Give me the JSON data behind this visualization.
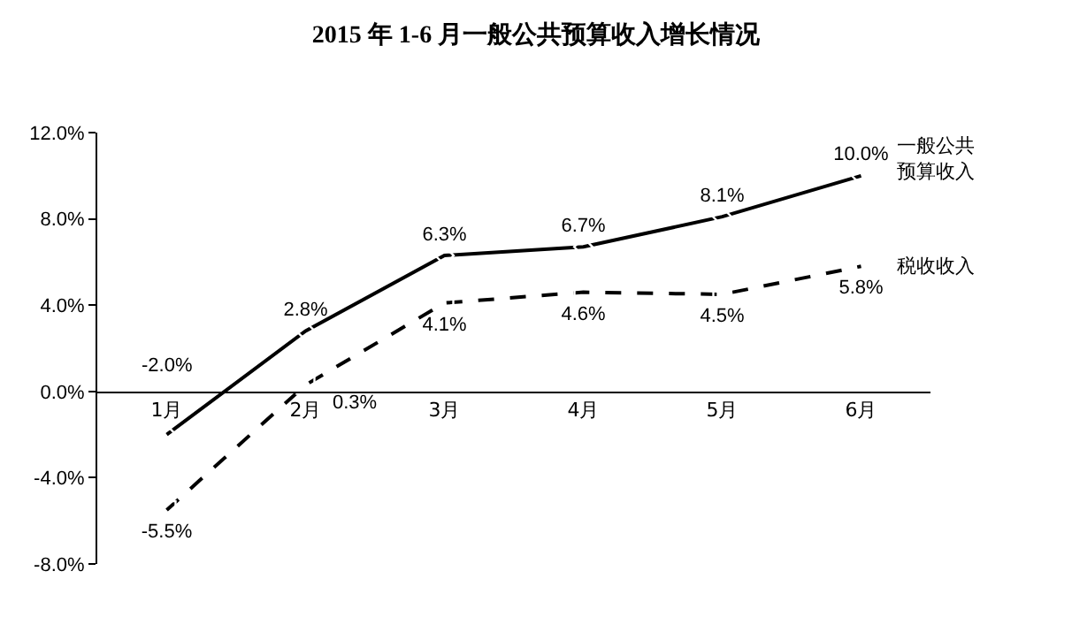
{
  "chart_data": {
    "type": "line",
    "title": "2015 年 1-6 月一般公共预算收入增长情况",
    "categories": [
      "1月",
      "2月",
      "3月",
      "4月",
      "5月",
      "6月"
    ],
    "series": [
      {
        "name": "一般公共预算收入",
        "color": "#000000",
        "marker": "diamond",
        "line_style": "solid",
        "values": [
          -2.0,
          2.8,
          6.3,
          6.7,
          8.1,
          10.0
        ],
        "value_labels": [
          "-2.0%",
          "2.8%",
          "6.3%",
          "6.7%",
          "8.1%",
          "10.0%"
        ]
      },
      {
        "name": "税收收入",
        "color": "#000000",
        "marker": "square",
        "line_style": "dashed",
        "values": [
          -5.5,
          0.3,
          4.1,
          4.6,
          4.5,
          5.8
        ],
        "value_labels": [
          "-5.5%",
          "0.3%",
          "4.1%",
          "4.6%",
          "4.5%",
          "5.8%"
        ]
      }
    ],
    "ylim": [
      -8,
      12
    ],
    "yticks": [
      {
        "value": -8,
        "label": "-8.0%"
      },
      {
        "value": -4,
        "label": "-4.0%"
      },
      {
        "value": 0,
        "label": "0.0%"
      },
      {
        "value": 4,
        "label": "4.0%"
      },
      {
        "value": 8,
        "label": "8.0%"
      },
      {
        "value": 12,
        "label": "12.0%"
      }
    ],
    "grid": false
  }
}
